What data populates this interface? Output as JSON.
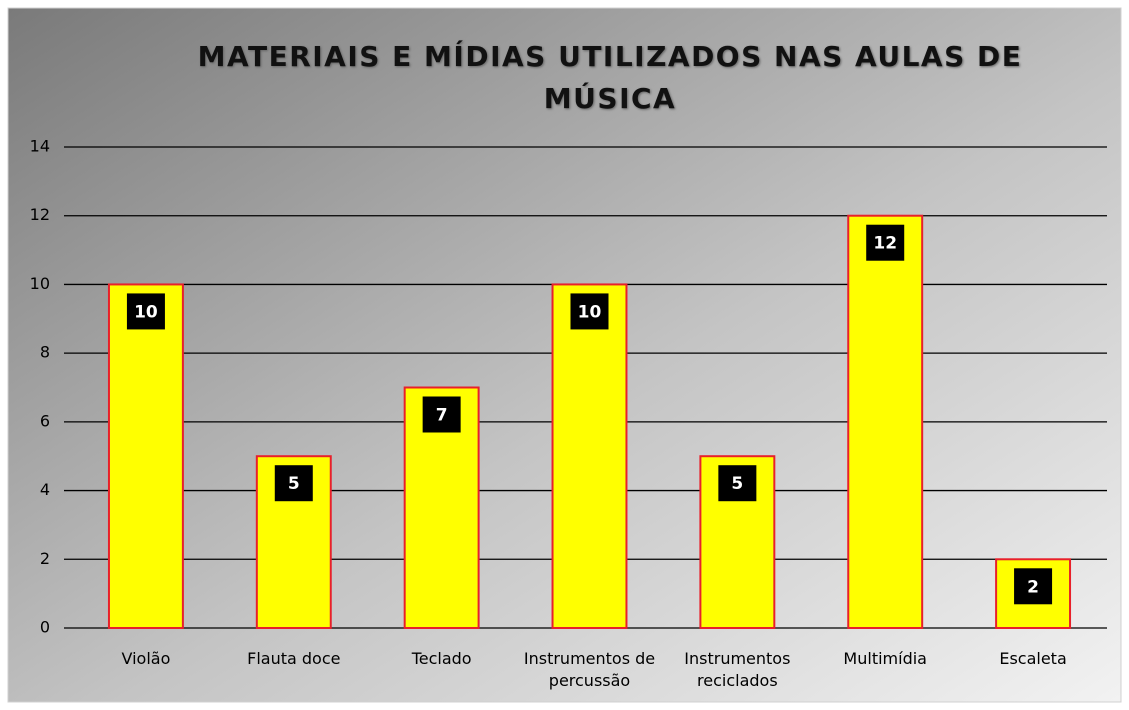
{
  "chart_data": {
    "type": "bar",
    "title": "MATERIAIS E MÍDIAS UTILIZADOS NAS AULAS DE MÚSICA",
    "categories": [
      "Violão",
      "Flauta doce",
      "Teclado",
      "Instrumentos de percussão",
      "Instrumentos reciclados",
      "Multimídia",
      "Escaleta"
    ],
    "values": [
      10,
      5,
      7,
      10,
      5,
      12,
      2
    ],
    "color": "#ffff00",
    "edge_color": "#e8202a",
    "ylim": [
      0,
      14
    ],
    "yticks": [
      0,
      2,
      4,
      6,
      8,
      10,
      12,
      14
    ],
    "grid": true
  }
}
